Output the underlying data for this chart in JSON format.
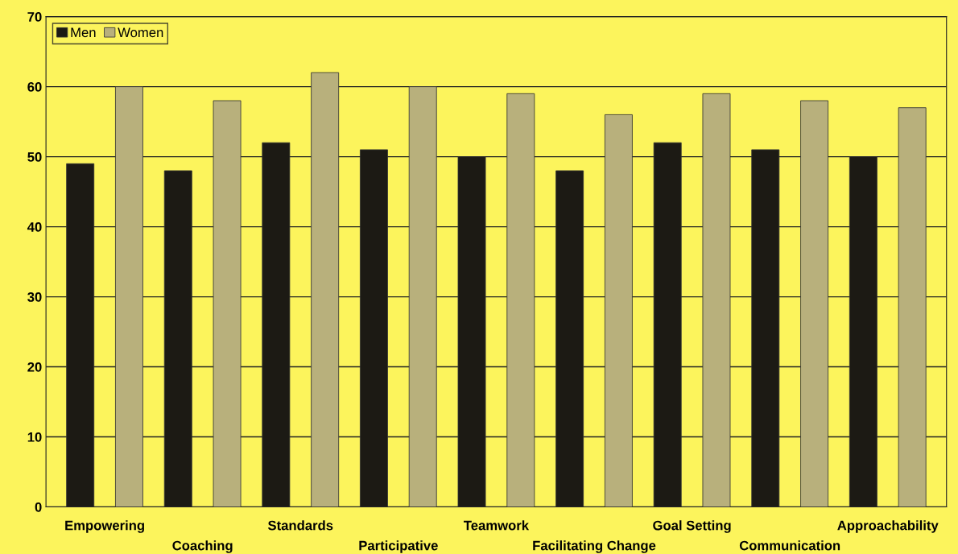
{
  "chart_data": {
    "type": "bar",
    "categories": [
      "Empowering",
      "Coaching",
      "Standards",
      "Participative",
      "Teamwork",
      "Facilitating Change",
      "Goal Setting",
      "Communication",
      "Approachability"
    ],
    "series": [
      {
        "name": "Men",
        "color": "#1c1a14",
        "values": [
          49,
          48,
          52,
          51,
          50,
          48,
          52,
          51,
          50
        ]
      },
      {
        "name": "Women",
        "color": "#b8b07c",
        "values": [
          60,
          58,
          62,
          60,
          59,
          56,
          59,
          58,
          57
        ]
      }
    ],
    "ylim": [
      0,
      70
    ],
    "yticks": [
      0,
      10,
      20,
      30,
      40,
      50,
      60,
      70
    ],
    "grid": "y",
    "legend": "top left"
  }
}
